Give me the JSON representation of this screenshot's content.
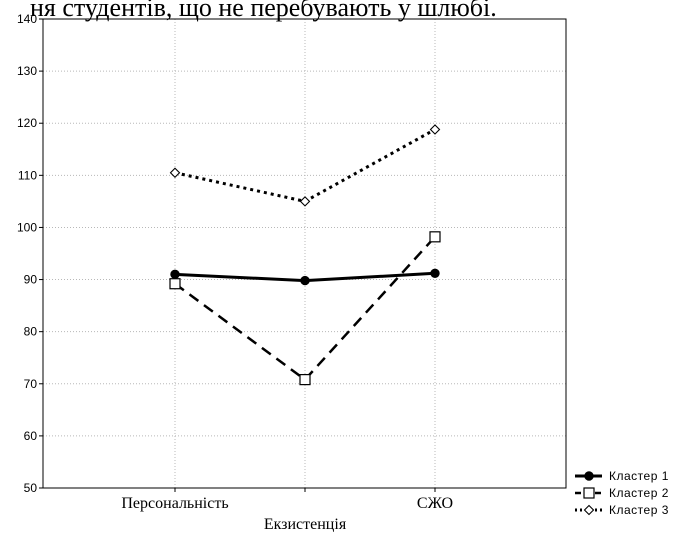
{
  "top_text": "ня студентів, що не перебувають у шлюбі.",
  "chart_data": {
    "type": "line",
    "categories": [
      "Персональність",
      "",
      "СЖО"
    ],
    "xlabel": "Екзистенція",
    "ylabel": "",
    "ylim": [
      50,
      140
    ],
    "yticks": [
      50,
      60,
      70,
      80,
      90,
      100,
      110,
      120,
      130,
      140
    ],
    "grid": true,
    "legend_position": "bottom-right",
    "series": [
      {
        "name": "Кластер 1",
        "values": [
          91,
          89.8,
          91.2
        ],
        "line_style": "solid",
        "marker": "filled-circle",
        "color": "#000000"
      },
      {
        "name": "Кластер 2",
        "values": [
          89.2,
          70.8,
          98.2
        ],
        "line_style": "dashed",
        "marker": "open-square",
        "color": "#000000"
      },
      {
        "name": "Кластер 3",
        "values": [
          110.5,
          105,
          118.8
        ],
        "line_style": "dotted",
        "marker": "open-diamond",
        "color": "#000000"
      }
    ]
  }
}
